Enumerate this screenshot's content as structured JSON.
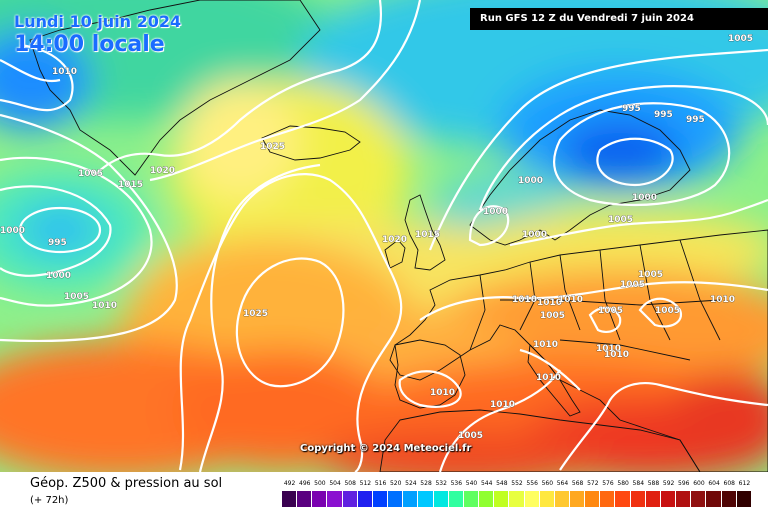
{
  "header": {
    "date": "Lundi 10 juin 2024",
    "time": "14:00 locale",
    "run": "Run GFS 12 Z du Vendredi 7 juin 2024"
  },
  "copyright": "Copyright © 2024 Meteociel.fr",
  "footer": {
    "title": "Géop. Z500 & pression au sol",
    "subtitle": "(+ 72h)"
  },
  "legend": {
    "labels": [
      "492",
      "496",
      "500",
      "504",
      "508",
      "512",
      "516",
      "520",
      "524",
      "528",
      "532",
      "536",
      "540",
      "544",
      "548",
      "552",
      "556",
      "560",
      "564",
      "568",
      "572",
      "576",
      "580",
      "584",
      "588",
      "592",
      "596",
      "600",
      "604",
      "608",
      "612"
    ],
    "colors": [
      "#3a0050",
      "#5a0080",
      "#7a00b0",
      "#8a10d0",
      "#6020e0",
      "#2020f0",
      "#0040ff",
      "#0070ff",
      "#00a0ff",
      "#00c8ff",
      "#00e8e0",
      "#30ffa0",
      "#60ff60",
      "#90ff30",
      "#c0ff20",
      "#e8ff40",
      "#ffff60",
      "#ffe840",
      "#ffc830",
      "#ffa820",
      "#ff8810",
      "#ff6810",
      "#ff4810",
      "#f03010",
      "#e02010",
      "#c81010",
      "#b01010",
      "#901010",
      "#700808",
      "#500404",
      "#300000"
    ]
  },
  "isobars": [
    {
      "label": "1010",
      "pos": "n-atlantic-nw"
    },
    {
      "label": "1005",
      "pos": "iceland-left"
    },
    {
      "label": "1015",
      "pos": "greenland-s"
    },
    {
      "label": "1020",
      "pos": "greenland-e"
    },
    {
      "label": "1025",
      "pos": "iceland"
    },
    {
      "label": "1000",
      "pos": "west-edge"
    },
    {
      "label": "995",
      "pos": "low-center"
    },
    {
      "label": "1000",
      "pos": "low-s"
    },
    {
      "label": "1005",
      "pos": "low-se"
    },
    {
      "label": "1010",
      "pos": "low-e"
    },
    {
      "label": "1025",
      "pos": "azores-high"
    },
    {
      "label": "1020",
      "pos": "ireland"
    },
    {
      "label": "1015",
      "pos": "uk"
    },
    {
      "label": "1000",
      "pos": "north-sea"
    },
    {
      "label": "1000",
      "pos": "scandinavia-w"
    },
    {
      "label": "1000",
      "pos": "denmark"
    },
    {
      "label": "995",
      "pos": "scandinavia-1"
    },
    {
      "label": "995",
      "pos": "scandinavia-2"
    },
    {
      "label": "995",
      "pos": "scandinavia-3"
    },
    {
      "label": "1000",
      "pos": "finland"
    },
    {
      "label": "1005",
      "pos": "baltic"
    },
    {
      "label": "1005",
      "pos": "poland"
    },
    {
      "label": "1005",
      "pos": "belarus"
    },
    {
      "label": "1005",
      "pos": "top-right"
    },
    {
      "label": "1010",
      "pos": "france-1"
    },
    {
      "label": "1010",
      "pos": "france-2"
    },
    {
      "label": "1010",
      "pos": "germany"
    },
    {
      "label": "1005",
      "pos": "alps"
    },
    {
      "label": "1005",
      "pos": "hungary"
    },
    {
      "label": "1005",
      "pos": "ukraine"
    },
    {
      "label": "1010",
      "pos": "russia-s"
    },
    {
      "label": "1010",
      "pos": "italy-n"
    },
    {
      "label": "1010",
      "pos": "italy"
    },
    {
      "label": "1010",
      "pos": "balkans"
    },
    {
      "label": "1010",
      "pos": "tyrrhenian"
    },
    {
      "label": "1010",
      "pos": "spain"
    },
    {
      "label": "1010",
      "pos": "algeria"
    },
    {
      "label": "1005",
      "pos": "libya"
    }
  ]
}
